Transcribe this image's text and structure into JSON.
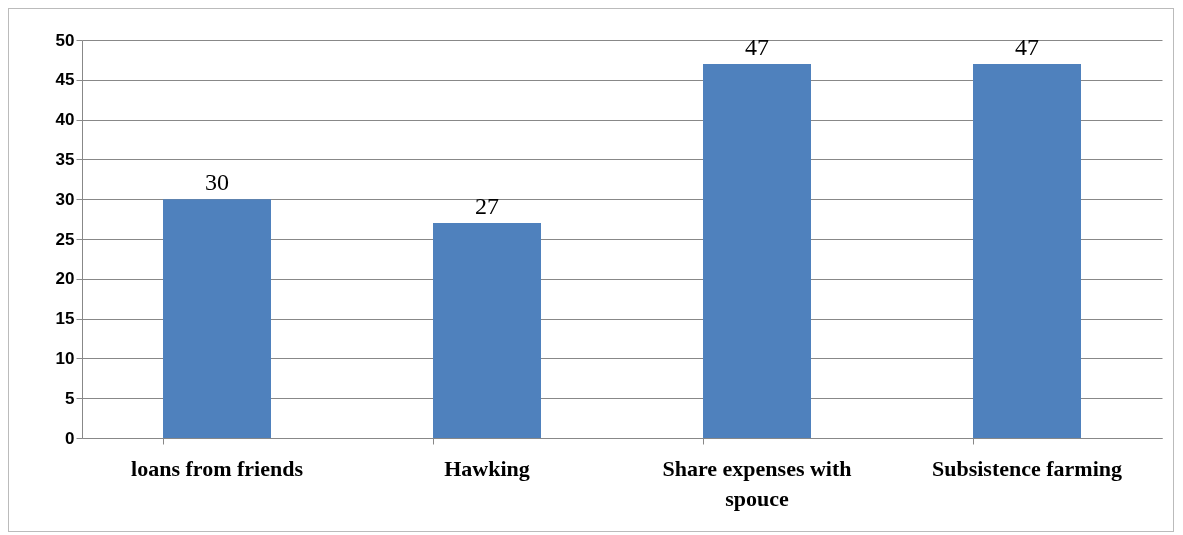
{
  "chart_data": {
    "type": "bar",
    "categories": [
      "loans from friends",
      "Hawking",
      "Share expenses with spouce",
      "Subsistence farming"
    ],
    "values": [
      30,
      27,
      47,
      47
    ],
    "color": "#4f81bd",
    "ylim": [
      0,
      50
    ],
    "yticks": [
      0,
      5,
      10,
      15,
      20,
      25,
      30,
      35,
      40,
      45,
      50
    ],
    "grid": "y",
    "data_labels": true
  }
}
